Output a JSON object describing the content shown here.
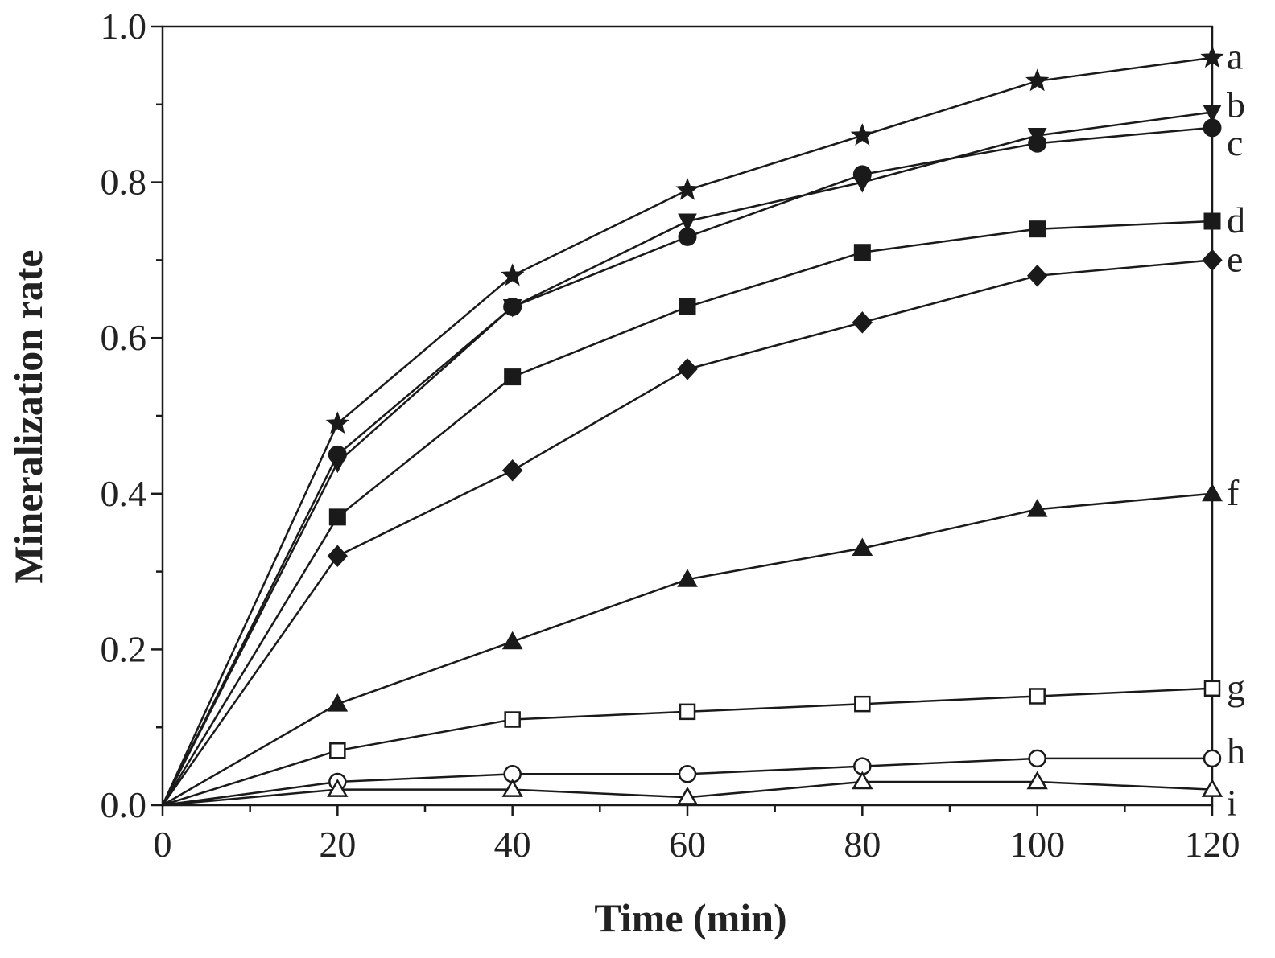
{
  "chart_data": {
    "type": "line",
    "xlabel": "Time (min)",
    "ylabel": "Mineralization rate",
    "xlim": [
      0,
      120
    ],
    "ylim": [
      0,
      1.0
    ],
    "x_ticks": [
      0,
      20,
      40,
      60,
      80,
      100,
      120
    ],
    "x_tick_labels": [
      "0",
      "20",
      "40",
      "60",
      "80",
      "100",
      "120"
    ],
    "x_minor_step": 10,
    "y_ticks": [
      0.0,
      0.2,
      0.4,
      0.6,
      0.8,
      1.0
    ],
    "y_tick_labels": [
      "0.0",
      "0.2",
      "0.4",
      "0.6",
      "0.8",
      "1.0"
    ],
    "y_minor_step": 0.1,
    "grid": false,
    "legend_placement": "right-end labels",
    "x": [
      0,
      20,
      40,
      60,
      80,
      100,
      120
    ],
    "series": [
      {
        "name": "a",
        "marker": "star",
        "values": [
          0,
          0.49,
          0.68,
          0.79,
          0.86,
          0.93,
          0.96
        ]
      },
      {
        "name": "b",
        "marker": "triangle-down",
        "values": [
          0,
          0.44,
          0.64,
          0.75,
          0.8,
          0.86,
          0.89
        ]
      },
      {
        "name": "c",
        "marker": "circle-filled",
        "values": [
          0,
          0.45,
          0.64,
          0.73,
          0.81,
          0.85,
          0.87
        ]
      },
      {
        "name": "d",
        "marker": "square-filled",
        "values": [
          0,
          0.37,
          0.55,
          0.64,
          0.71,
          0.74,
          0.75
        ]
      },
      {
        "name": "e",
        "marker": "diamond-filled",
        "values": [
          0,
          0.32,
          0.43,
          0.56,
          0.62,
          0.68,
          0.7
        ]
      },
      {
        "name": "f",
        "marker": "triangle-up-filled",
        "values": [
          0,
          0.13,
          0.21,
          0.29,
          0.33,
          0.38,
          0.4
        ]
      },
      {
        "name": "g",
        "marker": "square-open",
        "values": [
          0,
          0.07,
          0.11,
          0.12,
          0.13,
          0.14,
          0.15
        ]
      },
      {
        "name": "h",
        "marker": "circle-open",
        "values": [
          0,
          0.03,
          0.04,
          0.04,
          0.05,
          0.06,
          0.06
        ]
      },
      {
        "name": "i",
        "marker": "triangle-up-open",
        "values": [
          0,
          0.02,
          0.02,
          0.01,
          0.03,
          0.03,
          0.02
        ]
      }
    ],
    "colors": {
      "line": "#1a1a1a",
      "marker_fill": "#1a1a1a",
      "open_fill": "#ffffff",
      "text": "#222222"
    }
  }
}
